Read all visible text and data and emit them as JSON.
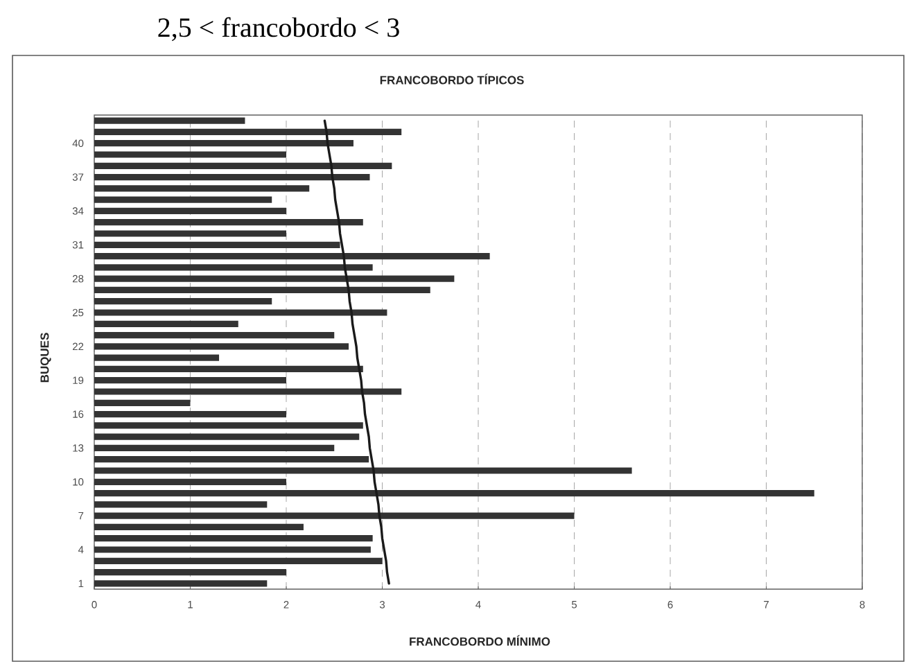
{
  "chart_data": {
    "type": "bar",
    "orientation": "horizontal",
    "title": "2,5 < francobordo < 3",
    "subtitle": "FRANCOBORDO TÍPICOS",
    "xlabel": "FRANCOBORDO MÍNIMO",
    "ylabel": "BUQUES",
    "categories": [
      null,
      null,
      "40",
      null,
      null,
      "37",
      null,
      null,
      "34",
      null,
      null,
      "31",
      null,
      null,
      "28",
      null,
      null,
      "25",
      null,
      null,
      "22",
      null,
      null,
      "19",
      null,
      null,
      "16",
      null,
      null,
      "13",
      null,
      null,
      "10",
      null,
      null,
      "7",
      null,
      null,
      "4",
      null,
      null,
      "1"
    ],
    "series": [
      {
        "type": "bar",
        "color": "#333333",
        "values": [
          1.57,
          3.2,
          2.7,
          2.0,
          3.1,
          2.87,
          2.24,
          1.85,
          2.0,
          2.8,
          2.0,
          2.56,
          4.12,
          2.9,
          3.75,
          3.5,
          1.85,
          3.05,
          1.5,
          2.5,
          2.65,
          1.3,
          2.8,
          2.0,
          3.2,
          1.0,
          2.0,
          2.8,
          2.76,
          2.5,
          2.86,
          5.6,
          2.0,
          7.5,
          1.8,
          5.0,
          2.18,
          2.9,
          2.88,
          3.0,
          2.0,
          1.8
        ]
      },
      {
        "type": "line",
        "color": "#1a1a1a",
        "values": [
          2.4,
          2.42,
          2.43,
          2.45,
          2.47,
          2.48,
          2.5,
          2.51,
          2.53,
          2.55,
          2.56,
          2.58,
          2.6,
          2.61,
          2.63,
          2.65,
          2.66,
          2.68,
          2.69,
          2.71,
          2.73,
          2.74,
          2.76,
          2.78,
          2.79,
          2.81,
          2.82,
          2.84,
          2.86,
          2.87,
          2.89,
          2.91,
          2.92,
          2.94,
          2.96,
          2.97,
          2.99,
          3.0,
          3.02,
          3.04,
          3.05,
          3.07
        ]
      }
    ],
    "xlim": [
      0,
      8
    ],
    "xticks": [
      0,
      1,
      2,
      3,
      4,
      5,
      6,
      7,
      8
    ],
    "grid": "x",
    "marker": "none"
  }
}
